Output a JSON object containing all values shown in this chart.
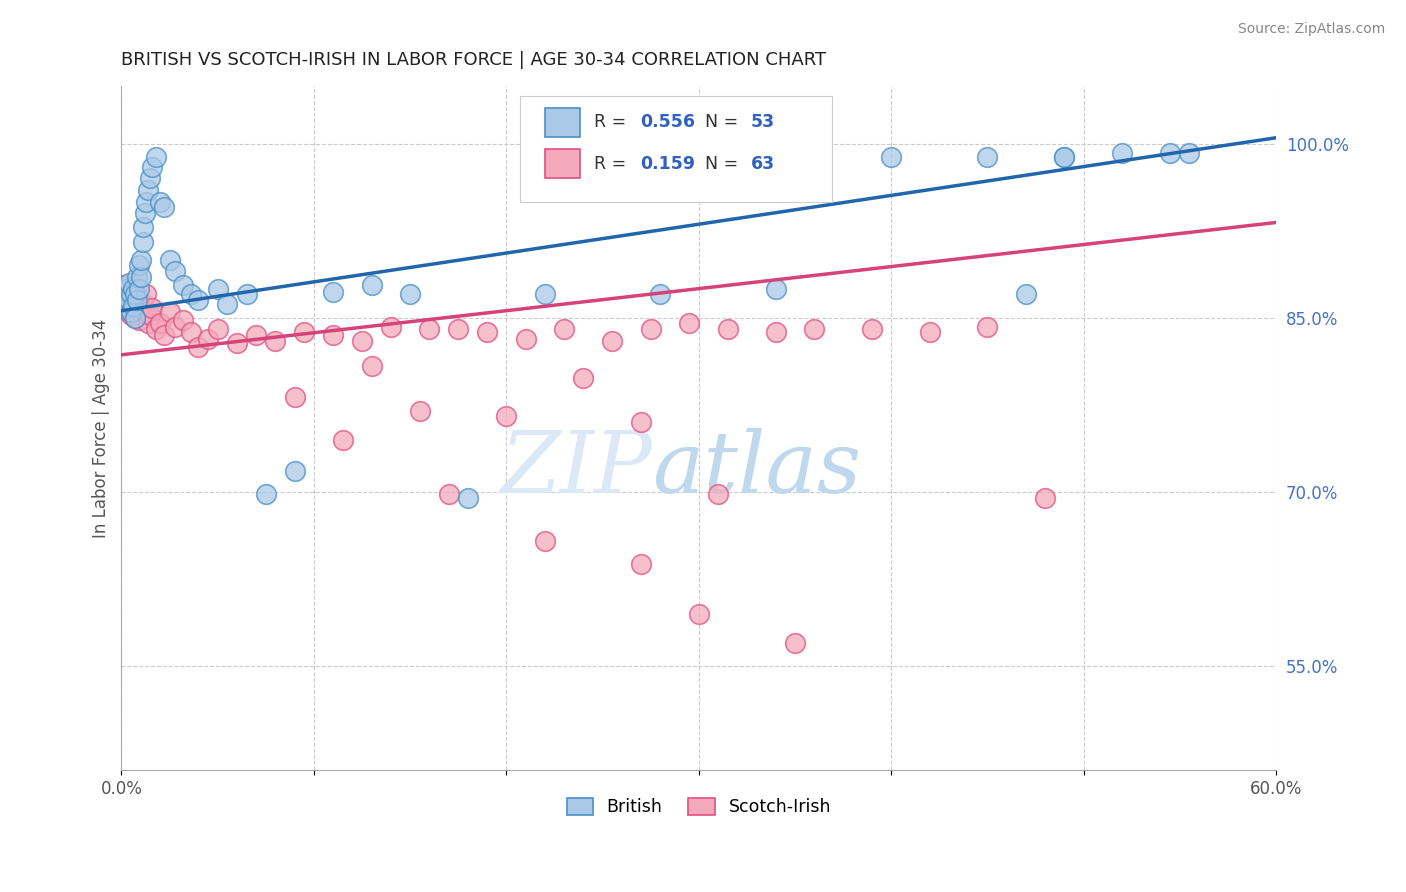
{
  "title": "BRITISH VS SCOTCH-IRISH IN LABOR FORCE | AGE 30-34 CORRELATION CHART",
  "source": "Source: ZipAtlas.com",
  "ylabel": "In Labor Force | Age 30-34",
  "xlim": [
    0.0,
    0.6
  ],
  "ylim": [
    0.46,
    1.05
  ],
  "xtick_positions": [
    0.0,
    0.1,
    0.2,
    0.3,
    0.4,
    0.5,
    0.6
  ],
  "xticklabels": [
    "0.0%",
    "",
    "",
    "",
    "",
    "",
    "60.0%"
  ],
  "yticks_right": [
    0.55,
    0.7,
    0.85,
    1.0
  ],
  "ytick_right_labels": [
    "55.0%",
    "70.0%",
    "85.0%",
    "100.0%"
  ],
  "british_color": "#aac9e8",
  "scotch_irish_color": "#f4aabc",
  "british_edge_color": "#4a90c4",
  "scotch_irish_edge_color": "#e05080",
  "british_line_color": "#2166ac",
  "scotch_irish_line_color": "#d6427a",
  "legend_r_british": "0.556",
  "legend_n_british": "53",
  "legend_r_scotch": "0.159",
  "legend_n_scotch": "63",
  "british_x": [
    0.001,
    0.002,
    0.003,
    0.003,
    0.004,
    0.004,
    0.005,
    0.005,
    0.006,
    0.006,
    0.007,
    0.007,
    0.008,
    0.008,
    0.009,
    0.009,
    0.01,
    0.01,
    0.011,
    0.011,
    0.012,
    0.013,
    0.014,
    0.015,
    0.016,
    0.018,
    0.02,
    0.022,
    0.025,
    0.028,
    0.032,
    0.036,
    0.04,
    0.05,
    0.055,
    0.065,
    0.075,
    0.09,
    0.11,
    0.13,
    0.15,
    0.18,
    0.22,
    0.28,
    0.34,
    0.4,
    0.45,
    0.49,
    0.52,
    0.545,
    0.555,
    0.49,
    0.47
  ],
  "british_y": [
    0.87,
    0.875,
    0.86,
    0.875,
    0.865,
    0.88,
    0.855,
    0.87,
    0.86,
    0.875,
    0.85,
    0.87,
    0.865,
    0.885,
    0.875,
    0.895,
    0.885,
    0.9,
    0.915,
    0.928,
    0.94,
    0.95,
    0.96,
    0.97,
    0.98,
    0.988,
    0.95,
    0.945,
    0.9,
    0.89,
    0.878,
    0.87,
    0.865,
    0.875,
    0.862,
    0.87,
    0.698,
    0.718,
    0.872,
    0.878,
    0.87,
    0.695,
    0.87,
    0.87,
    0.875,
    0.988,
    0.988,
    0.988,
    0.992,
    0.992,
    0.992,
    0.988,
    0.87
  ],
  "scotch_irish_x": [
    0.001,
    0.002,
    0.003,
    0.003,
    0.004,
    0.005,
    0.005,
    0.006,
    0.007,
    0.008,
    0.009,
    0.01,
    0.011,
    0.012,
    0.013,
    0.014,
    0.015,
    0.016,
    0.018,
    0.02,
    0.022,
    0.025,
    0.028,
    0.032,
    0.036,
    0.04,
    0.045,
    0.05,
    0.06,
    0.07,
    0.08,
    0.095,
    0.11,
    0.125,
    0.14,
    0.16,
    0.175,
    0.19,
    0.21,
    0.23,
    0.255,
    0.275,
    0.295,
    0.315,
    0.34,
    0.36,
    0.39,
    0.42,
    0.45,
    0.31,
    0.13,
    0.155,
    0.2,
    0.24,
    0.27,
    0.09,
    0.115,
    0.17,
    0.22,
    0.27,
    0.3,
    0.35,
    0.48
  ],
  "scotch_irish_y": [
    0.878,
    0.868,
    0.862,
    0.858,
    0.855,
    0.852,
    0.865,
    0.86,
    0.85,
    0.87,
    0.848,
    0.858,
    0.862,
    0.855,
    0.87,
    0.845,
    0.852,
    0.858,
    0.84,
    0.845,
    0.835,
    0.855,
    0.842,
    0.848,
    0.838,
    0.825,
    0.832,
    0.84,
    0.828,
    0.835,
    0.83,
    0.838,
    0.835,
    0.83,
    0.842,
    0.84,
    0.84,
    0.838,
    0.832,
    0.84,
    0.83,
    0.84,
    0.845,
    0.84,
    0.838,
    0.84,
    0.84,
    0.838,
    0.842,
    0.698,
    0.808,
    0.77,
    0.765,
    0.798,
    0.76,
    0.782,
    0.745,
    0.698,
    0.658,
    0.638,
    0.595,
    0.57,
    0.695
  ],
  "blue_line_x0": 0.0,
  "blue_line_y0": 0.856,
  "blue_line_x1": 0.6,
  "blue_line_y1": 1.005,
  "pink_line_x0": 0.0,
  "pink_line_y0": 0.818,
  "pink_line_x1": 0.6,
  "pink_line_y1": 0.932
}
